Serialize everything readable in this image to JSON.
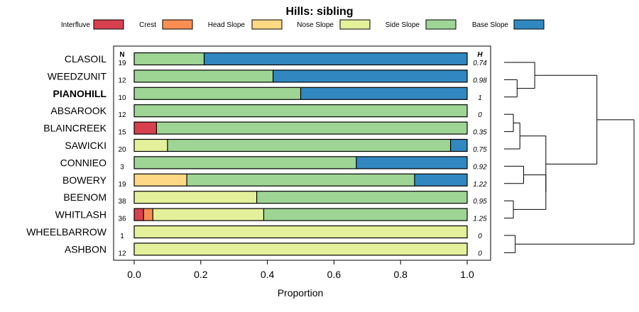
{
  "chart_data": {
    "type": "bar",
    "subtype": "stacked-horizontal-proportion",
    "title": "Hills: sibling",
    "xlabel": "Proportion",
    "ylabel": "",
    "xlim": [
      0,
      1
    ],
    "x_ticks": [
      "0.0",
      "0.2",
      "0.4",
      "0.6",
      "0.8",
      "1.0"
    ],
    "n_header": "N",
    "h_header": "H",
    "legend": [
      {
        "name": "Interfluve",
        "color": "#d7404f"
      },
      {
        "name": "Crest",
        "color": "#f98e53"
      },
      {
        "name": "Head Slope",
        "color": "#fed884"
      },
      {
        "name": "Nose Slope",
        "color": "#e5f19a"
      },
      {
        "name": "Side Slope",
        "color": "#9ed594"
      },
      {
        "name": "Base Slope",
        "color": "#3188c0"
      }
    ],
    "rows": [
      {
        "label": "CLASOIL",
        "n": "19",
        "h": "0.74",
        "bold": false,
        "values": [
          0,
          0,
          0,
          0,
          0.21,
          0.79
        ]
      },
      {
        "label": "WEEDZUNIT",
        "n": "12",
        "h": "0.98",
        "bold": false,
        "values": [
          0,
          0,
          0,
          0,
          0.417,
          0.583
        ]
      },
      {
        "label": "PIANOHILL",
        "n": "10",
        "h": "1",
        "bold": true,
        "values": [
          0,
          0,
          0,
          0,
          0.5,
          0.5
        ]
      },
      {
        "label": "ABSAROOK",
        "n": "12",
        "h": "0",
        "bold": false,
        "values": [
          0,
          0,
          0,
          0,
          1,
          0
        ]
      },
      {
        "label": "BLAINCREEK",
        "n": "15",
        "h": "0.35",
        "bold": false,
        "values": [
          0.067,
          0,
          0,
          0,
          0.933,
          0
        ]
      },
      {
        "label": "SAWICKI",
        "n": "20",
        "h": "0.75",
        "bold": false,
        "values": [
          0,
          0,
          0,
          0.1,
          0.85,
          0.05
        ]
      },
      {
        "label": "CONNIEO",
        "n": "3",
        "h": "0.92",
        "bold": false,
        "values": [
          0,
          0,
          0,
          0,
          0.667,
          0.333
        ]
      },
      {
        "label": "BOWERY",
        "n": "19",
        "h": "1.22",
        "bold": false,
        "values": [
          0,
          0,
          0.158,
          0,
          0.684,
          0.158
        ]
      },
      {
        "label": "BEENOM",
        "n": "38",
        "h": "0.95",
        "bold": false,
        "values": [
          0,
          0,
          0,
          0.368,
          0.632,
          0
        ]
      },
      {
        "label": "WHITLASH",
        "n": "36",
        "h": "1.25",
        "bold": false,
        "values": [
          0.028,
          0.028,
          0,
          0.333,
          0.611,
          0
        ]
      },
      {
        "label": "WHEELBARROW",
        "n": "1",
        "h": "0",
        "bold": false,
        "values": [
          0,
          0,
          0,
          1,
          0,
          0
        ]
      },
      {
        "label": "ASHBON",
        "n": "12",
        "h": "0",
        "bold": false,
        "values": [
          0,
          0,
          0,
          1,
          0,
          0
        ]
      }
    ],
    "dendrogram": {
      "leaf_order": [
        "CLASOIL",
        "WEEDZUNIT",
        "PIANOHILL",
        "ABSAROOK",
        "BLAINCREEK",
        "SAWICKI",
        "CONNIEO",
        "BOWERY",
        "BEENOM",
        "WHITLASH",
        "WHEELBARROW",
        "ASHBON"
      ],
      "merges": [
        {
          "id": "WP",
          "left": "WEEDZUNIT",
          "right": "PIANOHILL",
          "height": 0.14
        },
        {
          "id": "CWP",
          "left": "CLASOIL",
          "right": "WP",
          "height": 0.33
        },
        {
          "id": "AB",
          "left": "ABSAROOK",
          "right": "BLAINCREEK",
          "height": 0.1
        },
        {
          "id": "ABS",
          "left": "AB",
          "right": "SAWICKI",
          "height": 0.17
        },
        {
          "id": "CB",
          "left": "CONNIEO",
          "right": "BOWERY",
          "height": 0.21
        },
        {
          "id": "BW",
          "left": "BEENOM",
          "right": "WHITLASH",
          "height": 0.1
        },
        {
          "id": "CBBW",
          "left": "CB",
          "right": "BW",
          "height": 0.45
        },
        {
          "id": "MID",
          "left": "ABS",
          "right": "CBBW",
          "height": 0.45
        },
        {
          "id": "TOP",
          "left": "CWP",
          "right": "MID",
          "height": 1.0
        },
        {
          "id": "WA",
          "left": "WHEELBARROW",
          "right": "ASHBON",
          "height": 0.12
        },
        {
          "id": "ROOT",
          "left": "TOP",
          "right": "WA",
          "height": 1.4
        }
      ]
    }
  }
}
